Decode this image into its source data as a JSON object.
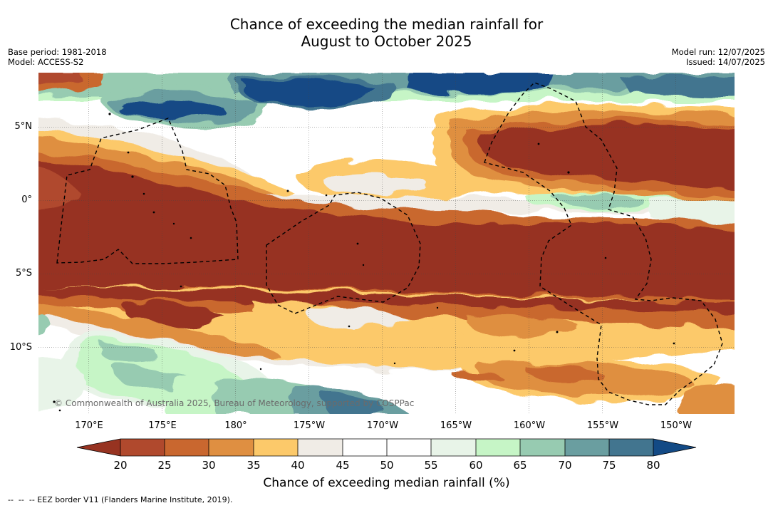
{
  "title": {
    "line1": "Chance of exceeding the median rainfall for",
    "line2": "August to October 2025"
  },
  "meta": {
    "base_period": "Base period: 1981-2018",
    "model": "Model: ACCESS-S2",
    "model_run": "Model run: 12/07/2025",
    "issued": "Issued: 14/07/2025"
  },
  "map": {
    "latitude_labels": [
      "5°N",
      "0°",
      "5°S",
      "10°S"
    ],
    "longitude_labels": [
      "170°E",
      "175°E",
      "180°",
      "175°W",
      "170°W",
      "165°W",
      "160°W",
      "155°W",
      "150°W"
    ],
    "copyright": "© Commonwealth of Australia 2025, Bureau of Meteorology, supported by COSPPac",
    "legend_line": "--  --  -- EEZ border V11 (Flanders Marine Institute, 2019).",
    "colorbar": {
      "label": "Chance of exceeding median rainfall (%)",
      "ticks": [
        "20",
        "25",
        "30",
        "35",
        "40",
        "45",
        "50",
        "55",
        "60",
        "65",
        "70",
        "75",
        "80"
      ],
      "colors": [
        "#973321",
        "#b0492d",
        "#c9672f",
        "#df8f41",
        "#fcc96a",
        "#f0ece6",
        "#ffffff",
        "#ffffff",
        "#e8f4e8",
        "#c6f5c6",
        "#97cbb1",
        "#6a9ea0",
        "#42758f",
        "#134a85"
      ]
    }
  }
}
